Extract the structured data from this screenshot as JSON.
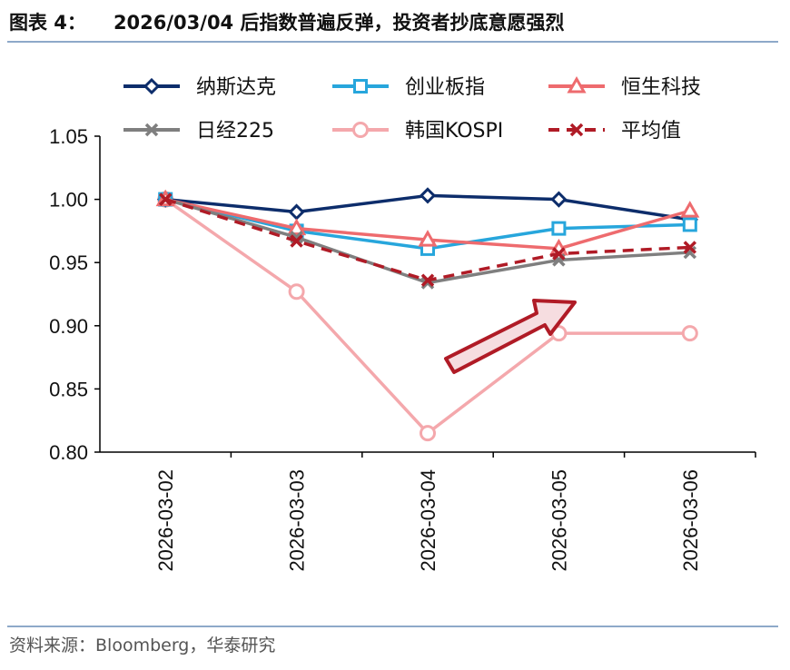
{
  "header": {
    "prefix": "图表 4：",
    "title": "2026/03/04 后指数普遍反弹，投资者抄底意愿强烈"
  },
  "footer": {
    "source": "资料来源：Bloomberg，华泰研究"
  },
  "chart_data": {
    "type": "line",
    "title": "",
    "xlabel": "",
    "ylabel": "",
    "categories": [
      "2026-03-02",
      "2026-03-03",
      "2026-03-04",
      "2026-03-05",
      "2026-03-06"
    ],
    "ylim": [
      0.8,
      1.05
    ],
    "yticks": [
      "0.80",
      "0.85",
      "0.90",
      "0.95",
      "1.00",
      "1.05"
    ],
    "grid": false,
    "legend_position": "top",
    "series": [
      {
        "name": "纳斯达克",
        "values": [
          1.0,
          0.99,
          1.003,
          1.0,
          0.984
        ],
        "color": "#0d2d6b",
        "marker": "diamond",
        "dash": false
      },
      {
        "name": "创业板指",
        "values": [
          1.0,
          0.975,
          0.961,
          0.977,
          0.98
        ],
        "color": "#27a6dc",
        "marker": "square",
        "dash": false
      },
      {
        "name": "恒生科技",
        "values": [
          1.0,
          0.977,
          0.968,
          0.961,
          0.991
        ],
        "color": "#ee6b6e",
        "marker": "triangle",
        "dash": false
      },
      {
        "name": "日经225",
        "values": [
          1.0,
          0.97,
          0.934,
          0.952,
          0.958
        ],
        "color": "#7f7f7f",
        "marker": "x",
        "dash": false
      },
      {
        "name": "韩国KOSPI",
        "values": [
          1.0,
          0.927,
          0.815,
          0.894,
          0.894
        ],
        "color": "#f4a8ac",
        "marker": "circle",
        "dash": false
      },
      {
        "name": "平均值",
        "values": [
          1.0,
          0.967,
          0.936,
          0.957,
          0.962
        ],
        "color": "#b01b26",
        "marker": "x",
        "dash": true
      }
    ],
    "annotation": {
      "type": "arrow",
      "direction": "up-right",
      "fill": "#f6dde0",
      "stroke": "#b01b26"
    }
  }
}
